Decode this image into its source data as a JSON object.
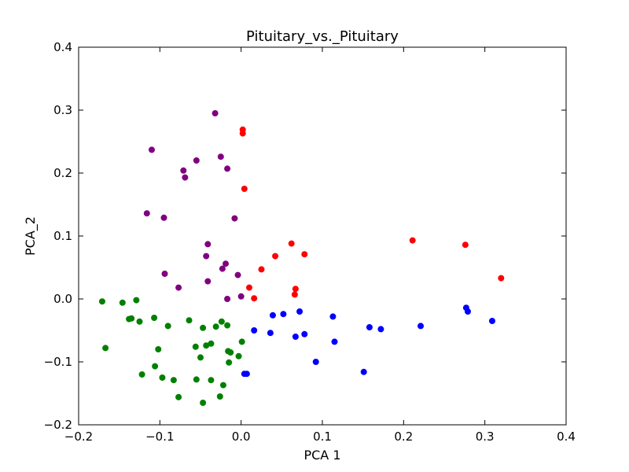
{
  "chart_data": {
    "type": "scatter",
    "title": "Pituitary_vs._Pituitary",
    "xlabel": "PCA 1",
    "ylabel": "PCA_2",
    "xlim": [
      -0.2,
      0.4
    ],
    "ylim": [
      -0.2,
      0.4
    ],
    "xticks": [
      -0.2,
      -0.1,
      0.0,
      0.1,
      0.2,
      0.3,
      0.4
    ],
    "yticks": [
      -0.2,
      -0.1,
      0.0,
      0.1,
      0.2,
      0.3,
      0.4
    ],
    "xtick_labels": [
      "−0.2",
      "−0.1",
      "0.0",
      "0.1",
      "0.2",
      "0.3",
      "0.4"
    ],
    "ytick_labels": [
      "−0.2",
      "−0.1",
      "0.0",
      "0.1",
      "0.2",
      "0.3",
      "0.4"
    ],
    "grid": false,
    "series": [
      {
        "color": "#008000",
        "points": [
          [
            -0.171,
            -0.004
          ],
          [
            -0.167,
            -0.078
          ],
          [
            -0.146,
            -0.006
          ],
          [
            -0.138,
            -0.032
          ],
          [
            -0.135,
            -0.031
          ],
          [
            -0.129,
            -0.002
          ],
          [
            -0.125,
            -0.036
          ],
          [
            -0.122,
            -0.12
          ],
          [
            -0.107,
            -0.03
          ],
          [
            -0.106,
            -0.107
          ],
          [
            -0.102,
            -0.08
          ],
          [
            -0.097,
            -0.125
          ],
          [
            -0.09,
            -0.043
          ],
          [
            -0.083,
            -0.129
          ],
          [
            -0.077,
            -0.156
          ],
          [
            -0.064,
            -0.034
          ],
          [
            -0.056,
            -0.076
          ],
          [
            -0.055,
            -0.128
          ],
          [
            -0.05,
            -0.093
          ],
          [
            -0.047,
            -0.046
          ],
          [
            -0.047,
            -0.165
          ],
          [
            -0.043,
            -0.074
          ],
          [
            -0.037,
            -0.071
          ],
          [
            -0.037,
            -0.129
          ],
          [
            -0.031,
            -0.044
          ],
          [
            -0.026,
            -0.155
          ],
          [
            -0.024,
            -0.036
          ],
          [
            -0.022,
            -0.137
          ],
          [
            -0.017,
            -0.042
          ],
          [
            -0.016,
            -0.083
          ],
          [
            -0.015,
            -0.101
          ],
          [
            -0.013,
            -0.085
          ],
          [
            -0.003,
            -0.091
          ],
          [
            0.001,
            -0.068
          ]
        ]
      },
      {
        "color": "#800080",
        "points": [
          [
            -0.11,
            0.237
          ],
          [
            -0.116,
            0.136
          ],
          [
            -0.095,
            0.129
          ],
          [
            -0.094,
            0.04
          ],
          [
            -0.077,
            0.018
          ],
          [
            -0.071,
            0.204
          ],
          [
            -0.069,
            0.193
          ],
          [
            -0.055,
            0.22
          ],
          [
            -0.043,
            0.068
          ],
          [
            -0.041,
            0.087
          ],
          [
            -0.041,
            0.028
          ],
          [
            -0.032,
            0.295
          ],
          [
            -0.025,
            0.226
          ],
          [
            -0.023,
            0.048
          ],
          [
            -0.019,
            0.056
          ],
          [
            -0.017,
            0.207
          ],
          [
            -0.017,
            0.0
          ],
          [
            -0.008,
            0.128
          ],
          [
            -0.004,
            0.038
          ],
          [
            0.0,
            0.004
          ]
        ]
      },
      {
        "color": "#ff0000",
        "points": [
          [
            0.002,
            0.269
          ],
          [
            0.002,
            0.263
          ],
          [
            0.004,
            0.175
          ],
          [
            0.01,
            0.018
          ],
          [
            0.016,
            0.001
          ],
          [
            0.025,
            0.047
          ],
          [
            0.042,
            0.068
          ],
          [
            0.062,
            0.088
          ],
          [
            0.066,
            0.007
          ],
          [
            0.067,
            0.016
          ],
          [
            0.078,
            0.071
          ],
          [
            0.211,
            0.093
          ],
          [
            0.276,
            0.086
          ],
          [
            0.32,
            0.033
          ]
        ]
      },
      {
        "color": "#0000ff",
        "points": [
          [
            0.004,
            -0.119
          ],
          [
            0.007,
            -0.119
          ],
          [
            0.016,
            -0.05
          ],
          [
            0.036,
            -0.054
          ],
          [
            0.039,
            -0.026
          ],
          [
            0.052,
            -0.024
          ],
          [
            0.067,
            -0.06
          ],
          [
            0.072,
            -0.02
          ],
          [
            0.078,
            -0.056
          ],
          [
            0.092,
            -0.1
          ],
          [
            0.113,
            -0.028
          ],
          [
            0.115,
            -0.068
          ],
          [
            0.151,
            -0.116
          ],
          [
            0.158,
            -0.045
          ],
          [
            0.172,
            -0.048
          ],
          [
            0.221,
            -0.043
          ],
          [
            0.277,
            -0.014
          ],
          [
            0.279,
            -0.02
          ],
          [
            0.309,
            -0.035
          ]
        ]
      }
    ]
  }
}
